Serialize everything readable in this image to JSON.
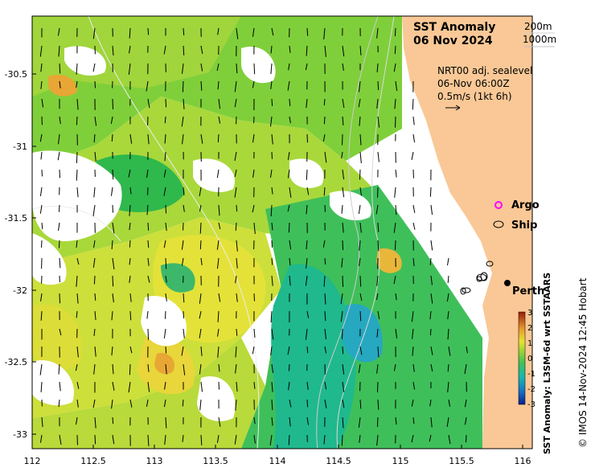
{
  "title": {
    "line1": "SST Anomaly",
    "line2": "06 Nov 2024"
  },
  "depth_legend": {
    "contour_a": "200m",
    "contour_b": "1000m"
  },
  "current_info": {
    "line1": "NRT00 adj. sealevel",
    "line2": "06-Nov 06:00Z",
    "line3": "0.5m/s (1kt 6h)"
  },
  "legend": {
    "argo": "Argo",
    "ship": "Ship"
  },
  "place": {
    "perth": "Perth"
  },
  "axes": {
    "x_ticks": [
      "112",
      "112.5",
      "113",
      "113.5",
      "114",
      "114.5",
      "115",
      "115.5",
      "116"
    ],
    "y_ticks": [
      "-30.5",
      "-31",
      "-31.5",
      "-32",
      "-32.5",
      "-33"
    ]
  },
  "colorbar": {
    "label": "SST Anomaly: L3SM-6d wrt SSTAARS",
    "ticks": [
      "3",
      "2",
      "1",
      "0",
      "-1",
      "-2",
      "-3"
    ]
  },
  "credit": "© IMOS 14-Nov-2024 12:45 Hobart",
  "colors": {
    "land": "#f9c896",
    "positive_anomaly": "#e8e23a",
    "near_zero": "#6ecb3a",
    "negative_anomaly": "#14b98e",
    "argo_marker": "#ff00ff",
    "ship_marker": "#000000"
  }
}
